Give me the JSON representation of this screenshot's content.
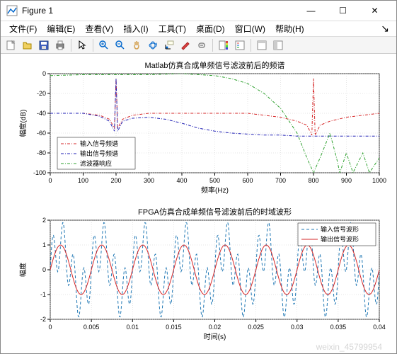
{
  "window": {
    "title": "Figure 1"
  },
  "menu": {
    "items": [
      "文件(F)",
      "编辑(E)",
      "查看(V)",
      "插入(I)",
      "工具(T)",
      "桌面(D)",
      "窗口(W)",
      "帮助(H)"
    ]
  },
  "toolbar": {
    "icons": [
      {
        "name": "new-figure-icon",
        "color": "#f8f8d0",
        "stroke": "#aa8"
      },
      {
        "name": "open-icon",
        "color": "#f0d060",
        "stroke": "#a80"
      },
      {
        "name": "save-icon",
        "color": "#4060c0",
        "stroke": "#204080"
      },
      {
        "name": "print-icon",
        "color": "#888",
        "stroke": "#555"
      }
    ],
    "nav_icons": [
      {
        "name": "pointer-icon"
      },
      {
        "name": "zoom-in-icon"
      },
      {
        "name": "zoom-out-icon"
      },
      {
        "name": "pan-icon"
      },
      {
        "name": "rotate-icon"
      },
      {
        "name": "data-cursor-icon"
      },
      {
        "name": "brush-icon"
      },
      {
        "name": "link-icon"
      }
    ],
    "layout_icons": [
      {
        "name": "colorbar-icon"
      },
      {
        "name": "legend-icon"
      }
    ],
    "dock_icons": [
      {
        "name": "hide-tools-icon"
      },
      {
        "name": "dock-icon"
      }
    ]
  },
  "chart1": {
    "title": "Matlab仿真合成单频信号滤波前后的频谱",
    "title_fontsize": 11,
    "xlabel": "频率(Hz)",
    "ylabel": "幅度(dB)",
    "xlim": [
      0,
      1000
    ],
    "ylim": [
      -100,
      0
    ],
    "xticks": [
      0,
      100,
      200,
      300,
      400,
      500,
      600,
      700,
      800,
      900,
      1000
    ],
    "yticks": [
      -100,
      -80,
      -60,
      -40,
      -20,
      0
    ],
    "grid_color": "#cccccc",
    "background_color": "#ffffff",
    "series": [
      {
        "name": "输入信号频谱",
        "color": "#d62728",
        "dash": "4,2,1,2",
        "width": 1,
        "x": [
          0,
          50,
          100,
          150,
          180,
          195,
          200,
          205,
          220,
          250,
          300,
          350,
          400,
          450,
          500,
          550,
          600,
          650,
          700,
          750,
          780,
          795,
          800,
          805,
          820,
          850,
          900,
          950,
          1000
        ],
        "y": [
          -40,
          -40,
          -40,
          -42,
          -46,
          -55,
          -5,
          -55,
          -46,
          -42,
          -40,
          -40,
          -40,
          -40,
          -40,
          -40,
          -40,
          -42,
          -44,
          -48,
          -52,
          -62,
          -5,
          -62,
          -52,
          -48,
          -44,
          -42,
          -40
        ]
      },
      {
        "name": "输出信号频谱",
        "color": "#1f1fb4",
        "dash": "4,2,1,2",
        "width": 1,
        "x": [
          0,
          50,
          100,
          150,
          180,
          195,
          200,
          205,
          220,
          250,
          300,
          350,
          400,
          450,
          500,
          550,
          600,
          650,
          700,
          750,
          800,
          850,
          900,
          950,
          1000
        ],
        "y": [
          -40,
          -40,
          -40,
          -43,
          -48,
          -58,
          -5,
          -58,
          -48,
          -45,
          -44,
          -46,
          -50,
          -55,
          -58,
          -60,
          -61,
          -62,
          -62,
          -63,
          -63,
          -63,
          -63,
          -63,
          -63
        ]
      },
      {
        "name": "滤波器响应",
        "color": "#2ca02c",
        "dash": "4,2,1,2",
        "width": 1,
        "x": [
          0,
          100,
          200,
          300,
          400,
          450,
          500,
          550,
          600,
          650,
          700,
          750,
          780,
          800,
          820,
          850,
          870,
          880,
          900,
          920,
          950,
          970,
          1000
        ],
        "y": [
          -2,
          -1,
          -1,
          -1,
          0,
          -1,
          -2,
          -5,
          -10,
          -20,
          -35,
          -60,
          -85,
          -100,
          -85,
          -60,
          -85,
          -100,
          -80,
          -100,
          -80,
          -100,
          -85
        ]
      }
    ],
    "legend": {
      "position": "lower-left",
      "items": [
        "输入信号频谱",
        "输出信号频谱",
        "滤波器响应"
      ],
      "fontsize": 9
    }
  },
  "chart2": {
    "title": "FPGA仿真合成单频信号滤波前后的时域波形",
    "title_fontsize": 11,
    "xlabel": "时间(s)",
    "ylabel": "幅度",
    "xlim": [
      0,
      0.04
    ],
    "ylim": [
      -2,
      2
    ],
    "xticks": [
      0,
      0.005,
      0.01,
      0.015,
      0.02,
      0.025,
      0.03,
      0.035,
      0.04
    ],
    "yticks": [
      -2,
      -1,
      0,
      1,
      2
    ],
    "grid_color": "#cccccc",
    "background_color": "#ffffff",
    "series": [
      {
        "name": "输入信号波形",
        "color": "#1f77b4",
        "dash": "4,3",
        "width": 1,
        "freq1": 200,
        "freq2": 800,
        "amp": 1.0
      },
      {
        "name": "输出信号波形",
        "color": "#d62728",
        "dash": "none",
        "width": 1,
        "freq": 200,
        "amp": 1.0
      }
    ],
    "legend": {
      "position": "upper-right",
      "items": [
        "输入信号波形",
        "输出信号波形"
      ],
      "fontsize": 9
    }
  },
  "watermark": "weixin_45799954"
}
